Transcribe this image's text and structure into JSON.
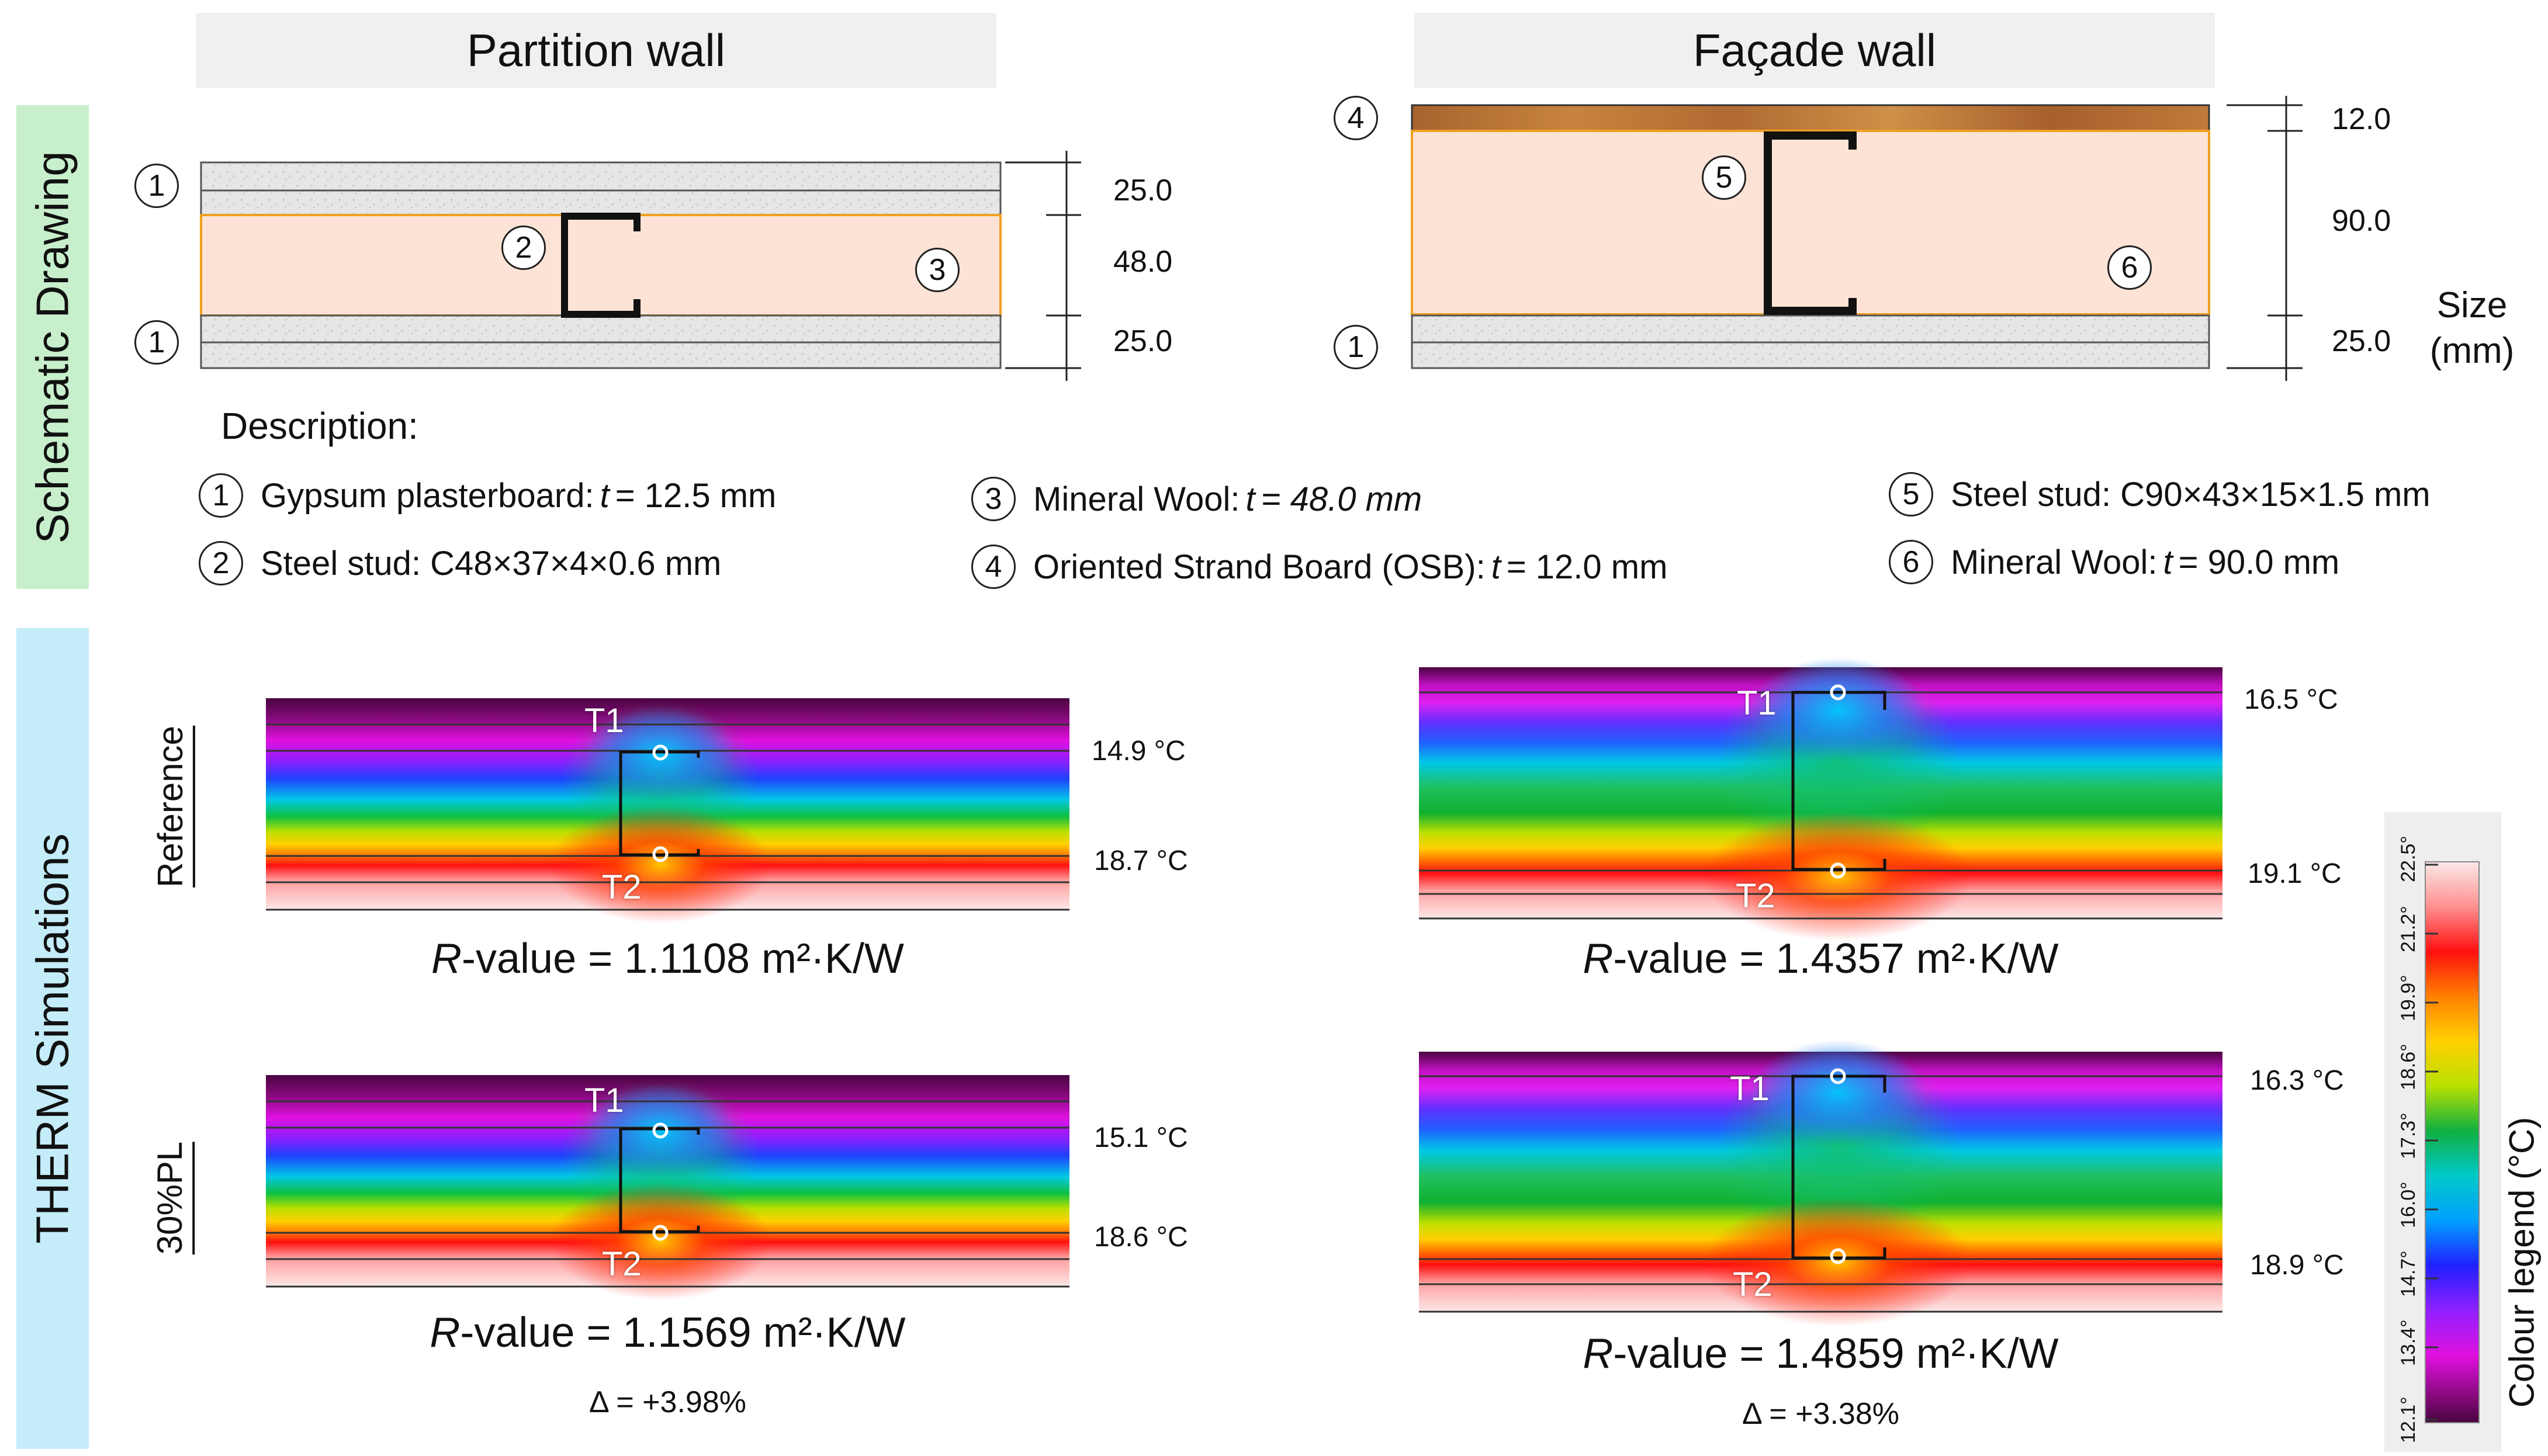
{
  "headers": {
    "partition": "Partition wall",
    "facade": "Façade wall"
  },
  "sidebars": {
    "top": "Schematic Drawing",
    "bottom": "THERM Simulations"
  },
  "row_labels": {
    "reference": "Reference",
    "pl": "30%PL"
  },
  "markers": {
    "p_1a": "1",
    "p_2": "2",
    "p_3": "3",
    "p_1b": "1",
    "f_4": "4",
    "f_5": "5",
    "f_6": "6",
    "f_1": "1"
  },
  "dims": {
    "partition": [
      "25.0",
      "48.0",
      "25.0"
    ],
    "facade": [
      "12.0",
      "90.0",
      "25.0"
    ],
    "size_line1": "Size",
    "size_line2": "(mm)"
  },
  "description": {
    "title": "Description:",
    "items": [
      {
        "num": "1",
        "text": "Gypsum plasterboard:",
        "var": "t",
        "rest": "= 12.5 mm"
      },
      {
        "num": "2",
        "text": "Steel stud: C48×37×4×0.6 mm",
        "var": "",
        "rest": ""
      },
      {
        "num": "3",
        "text": "Mineral Wool:",
        "var": "t",
        "rest": "= 48.0 mm"
      },
      {
        "num": "4",
        "text": "Oriented Strand Board (OSB):",
        "var": "t",
        "rest": "= 12.0 mm"
      },
      {
        "num": "5",
        "text": "Steel stud: C90×43×15×1.5 mm",
        "var": "",
        "rest": ""
      },
      {
        "num": "6",
        "text": "Mineral Wool:",
        "var": "t",
        "rest": "= 90.0 mm"
      }
    ]
  },
  "simulations": {
    "partition_ref": {
      "t1": "14.9 °C",
      "t2": "18.7 °C",
      "r_pre": "-value = 1.1108 m²·K/W"
    },
    "partition_pl": {
      "t1": "15.1 °C",
      "t2": "18.6 °C",
      "r_pre": "-value = 1.1569 m²·K/W",
      "delta": "Δ = +3.98%"
    },
    "facade_ref": {
      "t1": "16.5 °C",
      "t2": "19.1 °C",
      "r_pre": "-value = 1.4357 m²·K/W"
    },
    "facade_pl": {
      "t1": "16.3 °C",
      "t2": "18.9 °C",
      "r_pre": "-value = 1.4859 m²·K/W",
      "delta": "Δ = +3.38%"
    },
    "r_var": "R",
    "t1_label": "T1",
    "t2_label": "T2"
  },
  "legend": {
    "title": "Colour legend (°C)",
    "ticks": [
      "22.5°",
      "21.2°",
      "19.9°",
      "18.6°",
      "17.3°",
      "16.0°",
      "14.7°",
      "13.4°",
      "12.1°"
    ]
  },
  "colors": {
    "insulation": "#fde3d6",
    "insulation_border": "#f0a020",
    "osb": "#b8733a",
    "gypsum": "#e4e4e4",
    "header_bg": "#f0f0f0",
    "schematic_sidebar": "#c8efcb",
    "therm_sidebar": "#c4ecf9"
  }
}
